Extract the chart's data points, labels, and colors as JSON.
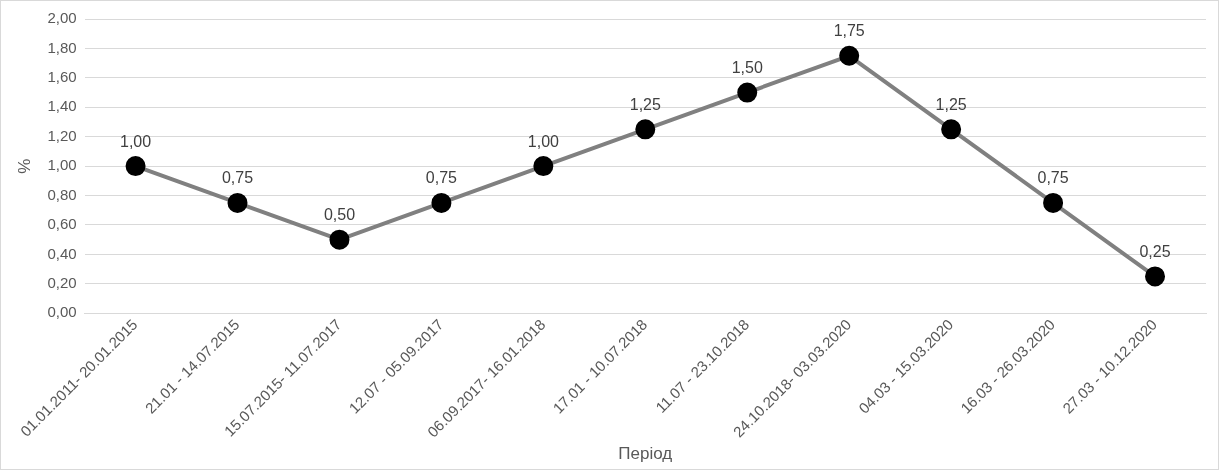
{
  "chart_data": {
    "type": "line",
    "xlabel": "Період",
    "ylabel": "%",
    "categories": [
      "01.01.2011- 20.01.2015",
      "21.01 - 14.07.2015",
      "15.07.2015- 11.07.2017",
      "12.07 - 05.09.2017",
      "06.09.2017- 16.01.2018",
      "17.01 - 10.07.2018",
      "11.07 - 23.10.2018",
      "24.10.2018- 03.03.2020",
      "04.03 - 15.03.2020",
      "16.03 - 26.03.2020",
      "27.03 - 10.12.2020"
    ],
    "series": [
      {
        "color": "#808080",
        "values": [
          1.0,
          0.75,
          0.5,
          0.75,
          1.0,
          1.25,
          1.5,
          1.75,
          1.25,
          0.75,
          0.25
        ],
        "value_labels": [
          "1,00",
          "0,75",
          "0,50",
          "0,75",
          "1,00",
          "1,25",
          "1,50",
          "1,75",
          "1,25",
          "0,75",
          "0,25"
        ]
      }
    ],
    "ylim": [
      0,
      2
    ],
    "yticks": [
      {
        "value": 0,
        "label": "0,00"
      },
      {
        "value": 0.2,
        "label": "0,20"
      },
      {
        "value": 0.4,
        "label": "0,40"
      },
      {
        "value": 0.6,
        "label": "0,60"
      },
      {
        "value": 0.8,
        "label": "0,80"
      },
      {
        "value": 1,
        "label": "1,00"
      },
      {
        "value": 1.2,
        "label": "1,20"
      },
      {
        "value": 1.4,
        "label": "1,40"
      },
      {
        "value": 1.6,
        "label": "1,60"
      },
      {
        "value": 1.8,
        "label": "1,80"
      },
      {
        "value": 2,
        "label": "2,00"
      }
    ],
    "grid": "y",
    "legend": false,
    "marker": "circle",
    "line_style": "solid"
  }
}
